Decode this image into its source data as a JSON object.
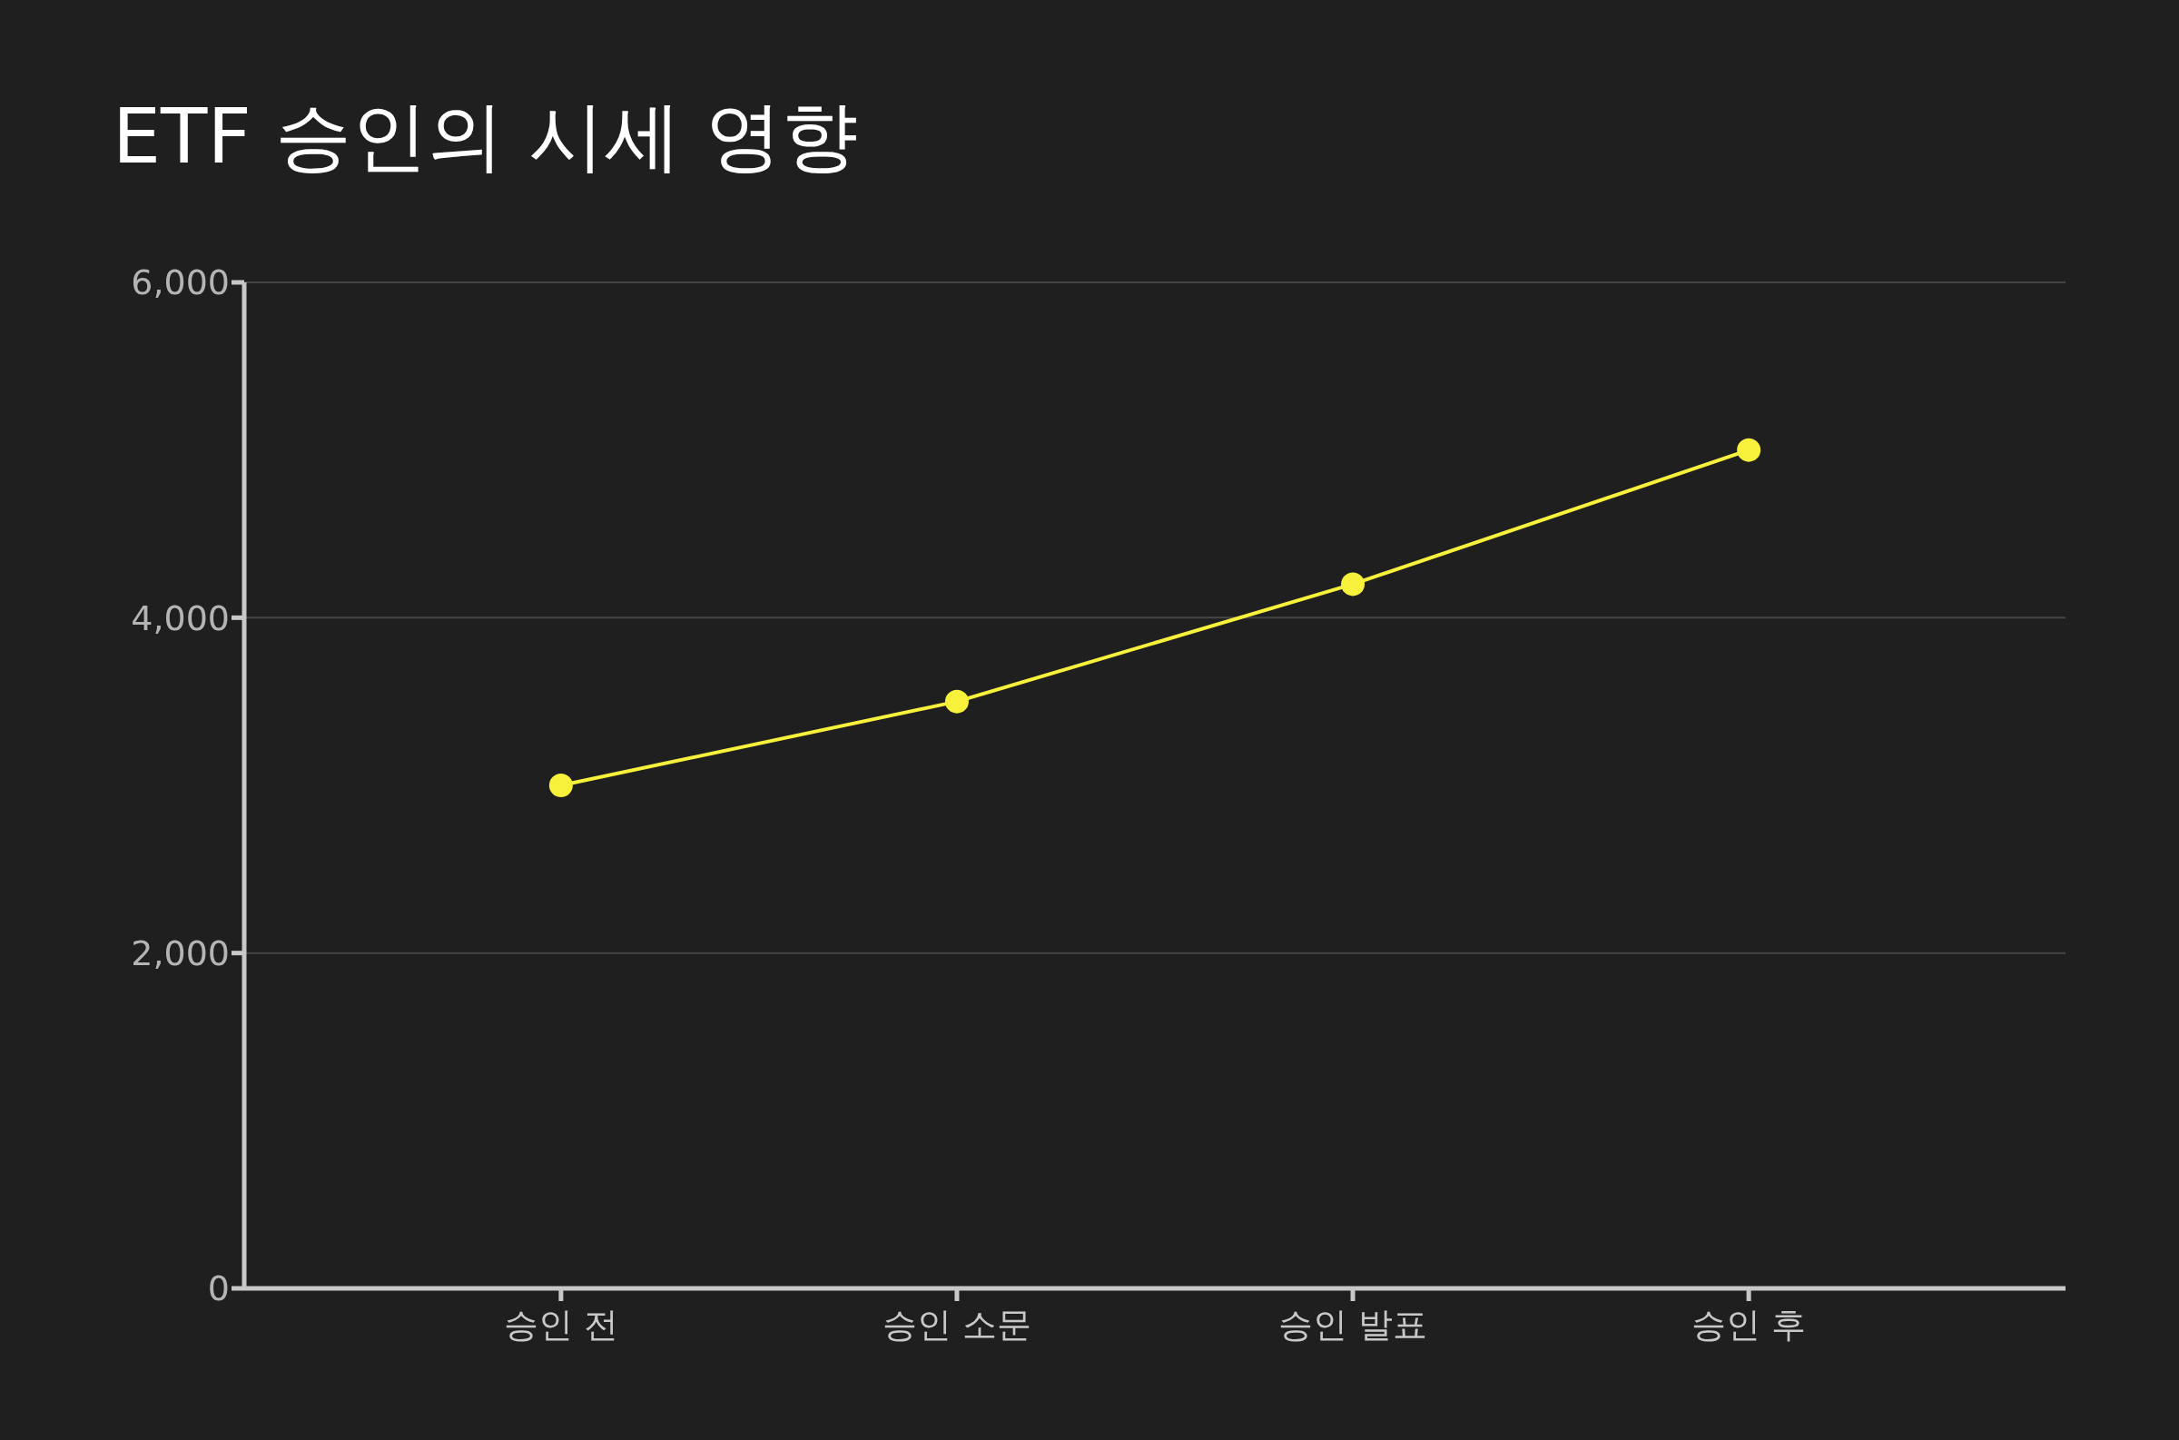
{
  "chart_data": {
    "type": "line",
    "title": "ETF 승인의 시세 영향",
    "categories": [
      "승인 전",
      "승인 소문",
      "승인 발표",
      "승인 후"
    ],
    "series": [
      {
        "color": "#f7f13c",
        "values": [
          3000,
          3500,
          4200,
          5000
        ]
      }
    ],
    "ylim": [
      0,
      6000
    ],
    "yticks": [
      {
        "value": 0,
        "label": "0"
      },
      {
        "value": 2000,
        "label": "2,000"
      },
      {
        "value": 4000,
        "label": "4,000"
      },
      {
        "value": 6000,
        "label": "6,000"
      }
    ],
    "grid": "y",
    "marker": "circle",
    "line_style": "solid",
    "legend": false
  }
}
